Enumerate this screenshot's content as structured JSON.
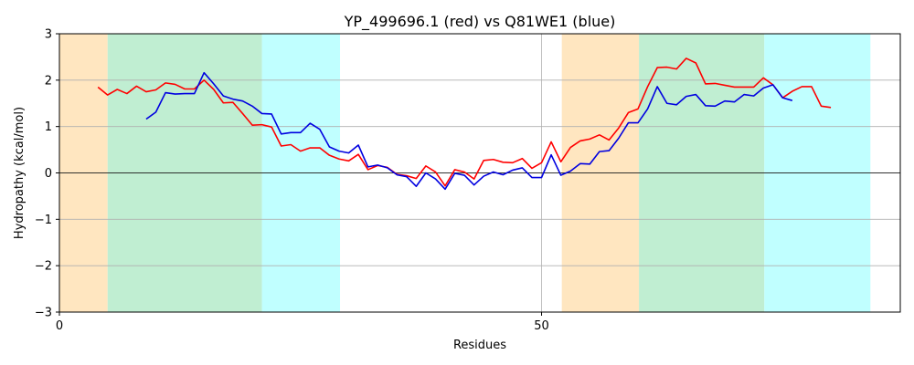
{
  "chart_data": {
    "type": "line",
    "title": "YP_499696.1 (red) vs Q81WE1 (blue)",
    "xlabel": "Residues",
    "ylabel": "Hydropathy (kcal/mol)",
    "xlim": [
      0,
      87.2
    ],
    "ylim": [
      -3,
      3
    ],
    "x_ticks": [
      0,
      50
    ],
    "y_ticks": [
      -3,
      -2,
      -1,
      0,
      1,
      2,
      3
    ],
    "grid": true,
    "zero_line": true,
    "regions": [
      {
        "start": 0,
        "end": 5,
        "color": "#ffe6c0"
      },
      {
        "start": 5,
        "end": 21,
        "color": "#c0eed2"
      },
      {
        "start": 21,
        "end": 29.1,
        "color": "#c0ffff"
      },
      {
        "start": 52.1,
        "end": 60.1,
        "color": "#ffe6c0"
      },
      {
        "start": 60.1,
        "end": 73.1,
        "color": "#c0eed2"
      },
      {
        "start": 73.1,
        "end": 84.1,
        "color": "#c0ffff"
      }
    ],
    "series": [
      {
        "color": "#ff0000",
        "x_start": 4,
        "values": [
          1.85,
          1.68,
          1.8,
          1.71,
          1.87,
          1.75,
          1.79,
          1.94,
          1.91,
          1.81,
          1.81,
          2.0,
          1.8,
          1.51,
          1.52,
          1.28,
          1.03,
          1.04,
          0.99,
          0.58,
          0.61,
          0.47,
          0.54,
          0.54,
          0.38,
          0.3,
          0.26,
          0.4,
          0.07,
          0.16,
          0.12,
          -0.03,
          -0.06,
          -0.12,
          0.15,
          0.02,
          -0.28,
          0.07,
          0.02,
          -0.13,
          0.27,
          0.29,
          0.23,
          0.22,
          0.31,
          0.1,
          0.22,
          0.67,
          0.24,
          0.55,
          0.69,
          0.73,
          0.82,
          0.71,
          0.97,
          1.3,
          1.38,
          1.86,
          2.27,
          2.28,
          2.24,
          2.47,
          2.37,
          1.92,
          1.93,
          1.89,
          1.85,
          1.85,
          1.85,
          2.05,
          1.9,
          1.62,
          1.76,
          1.86,
          1.86,
          1.44,
          1.41
        ]
      },
      {
        "color": "#0000e0",
        "x_start": 9,
        "values": [
          1.16,
          1.31,
          1.73,
          1.7,
          1.71,
          1.71,
          2.16,
          1.92,
          1.66,
          1.59,
          1.55,
          1.44,
          1.28,
          1.27,
          0.84,
          0.87,
          0.87,
          1.07,
          0.94,
          0.56,
          0.47,
          0.43,
          0.6,
          0.13,
          0.17,
          0.11,
          -0.04,
          -0.08,
          -0.29,
          0.0,
          -0.13,
          -0.35,
          -0.01,
          -0.05,
          -0.26,
          -0.07,
          0.02,
          -0.04,
          0.06,
          0.11,
          -0.1,
          -0.1,
          0.39,
          -0.05,
          0.04,
          0.2,
          0.19,
          0.46,
          0.48,
          0.75,
          1.08,
          1.08,
          1.38,
          1.86,
          1.5,
          1.47,
          1.65,
          1.69,
          1.45,
          1.44,
          1.55,
          1.53,
          1.69,
          1.66,
          1.83,
          1.9,
          1.62,
          1.56
        ]
      }
    ]
  }
}
